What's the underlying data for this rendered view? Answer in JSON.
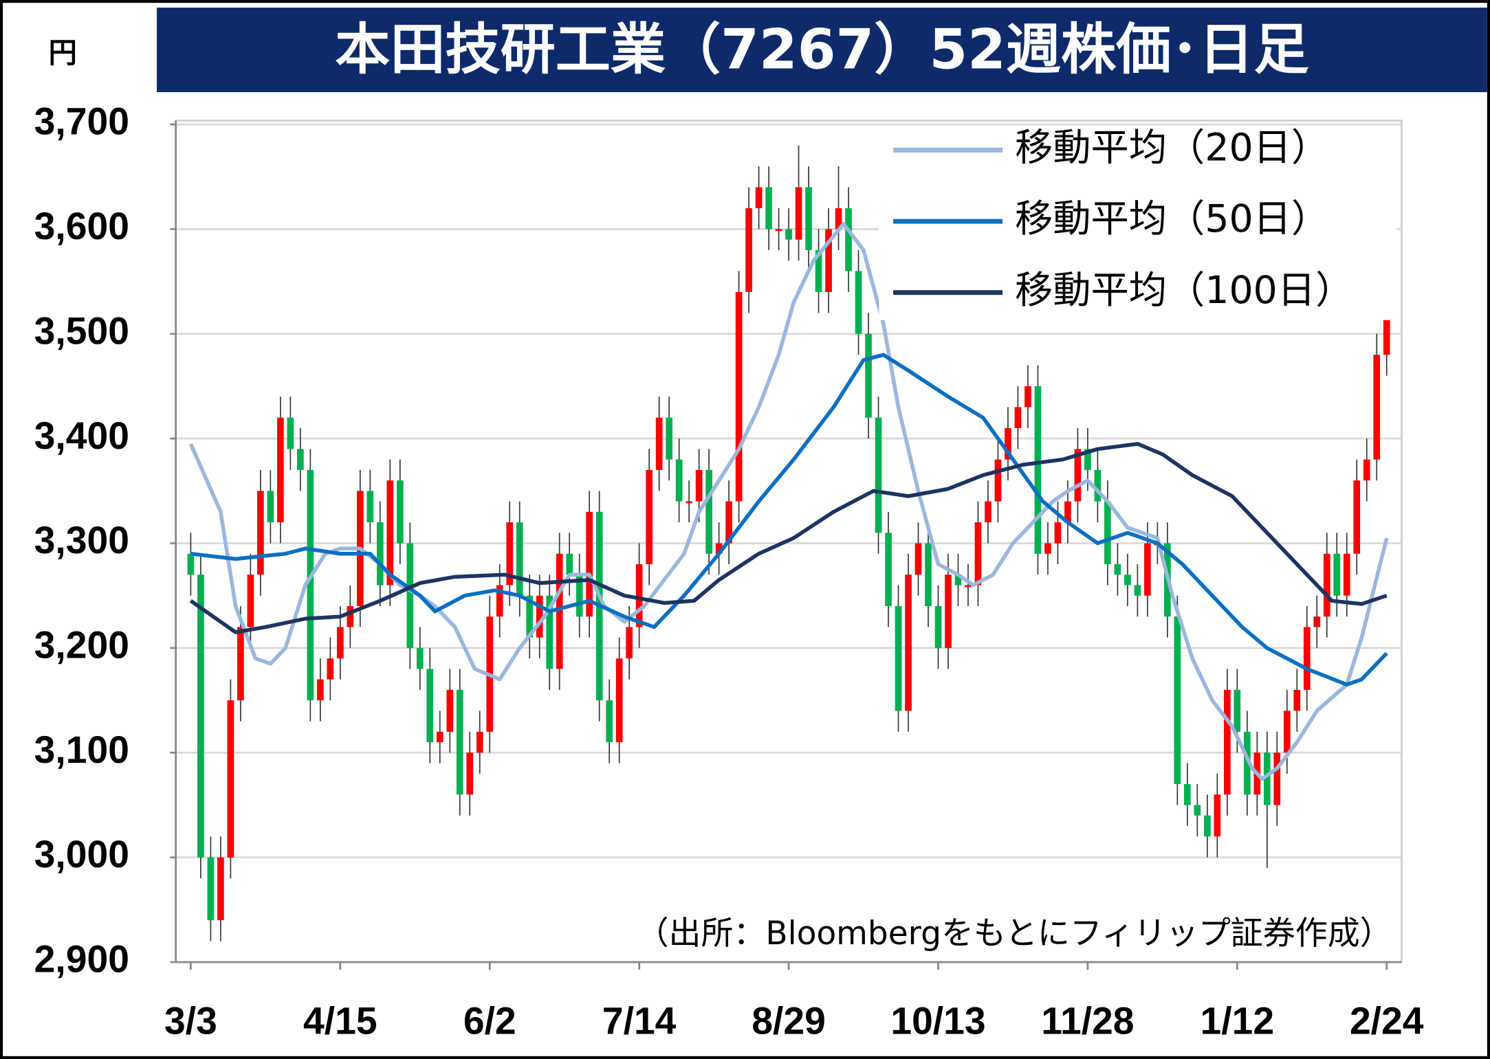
{
  "chart_data": {
    "type": "candlestick",
    "title": "本田技研工業（7267）52週株価･日足",
    "y_unit": "円",
    "source": "（出所：Bloombergをもとにフィリップ証券作成）",
    "up_color": "#ff0000",
    "down_color": "#00b050",
    "grid": true,
    "legend": "top-right",
    "xlim": [
      -3,
      243
    ],
    "xticks": [
      {
        "value": 0,
        "label": "3/3"
      },
      {
        "value": 30,
        "label": "4/15"
      },
      {
        "value": 60,
        "label": "6/2"
      },
      {
        "value": 90,
        "label": "7/14"
      },
      {
        "value": 120,
        "label": "8/29"
      },
      {
        "value": 150,
        "label": "10/13"
      },
      {
        "value": 180,
        "label": "11/28"
      },
      {
        "value": 210,
        "label": "1/12"
      },
      {
        "value": 240,
        "label": "2/24"
      }
    ],
    "ylim": [
      2900,
      3700
    ],
    "yticks": [
      {
        "value": 2900,
        "label": "2,900"
      },
      {
        "value": 3000,
        "label": "3,000"
      },
      {
        "value": 3100,
        "label": "3,100"
      },
      {
        "value": 3200,
        "label": "3,200"
      },
      {
        "value": 3300,
        "label": "3,300"
      },
      {
        "value": 3400,
        "label": "3,400"
      },
      {
        "value": 3500,
        "label": "3,500"
      },
      {
        "value": 3600,
        "label": "3,600"
      },
      {
        "value": 3700,
        "label": "3,700"
      }
    ],
    "x": [
      0,
      2,
      4,
      6,
      8,
      10,
      12,
      14,
      16,
      18,
      20,
      22,
      24,
      26,
      28,
      30,
      32,
      34,
      36,
      38,
      40,
      42,
      44,
      46,
      48,
      50,
      52,
      54,
      56,
      58,
      60,
      62,
      64,
      66,
      68,
      70,
      72,
      74,
      76,
      78,
      80,
      82,
      84,
      86,
      88,
      90,
      92,
      94,
      96,
      98,
      100,
      102,
      104,
      106,
      108,
      110,
      112,
      114,
      116,
      118,
      120,
      122,
      124,
      126,
      128,
      130,
      132,
      134,
      136,
      138,
      140,
      142,
      144,
      146,
      148,
      150,
      152,
      154,
      156,
      158,
      160,
      162,
      164,
      166,
      168,
      170,
      172,
      174,
      176,
      178,
      180,
      182,
      184,
      186,
      188,
      190,
      192,
      194,
      196,
      198,
      200,
      202,
      204,
      206,
      208,
      210,
      212,
      214,
      216,
      218,
      220,
      222,
      224,
      226,
      228,
      230,
      232,
      234,
      236,
      238,
      240
    ],
    "open": [
      3290,
      3270,
      3000,
      2940,
      3000,
      3150,
      3220,
      3270,
      3350,
      3320,
      3420,
      3390,
      3370,
      3150,
      3170,
      3190,
      3220,
      3240,
      3350,
      3320,
      3260,
      3360,
      3300,
      3200,
      3180,
      3110,
      3120,
      3160,
      3060,
      3100,
      3120,
      3230,
      3260,
      3320,
      3250,
      3210,
      3250,
      3180,
      3290,
      3270,
      3230,
      3330,
      3150,
      3110,
      3190,
      3220,
      3280,
      3370,
      3420,
      3380,
      3340,
      3340,
      3370,
      3290,
      3300,
      3340,
      3540,
      3620,
      3640,
      3600,
      3600,
      3590,
      3640,
      3580,
      3540,
      3600,
      3620,
      3560,
      3500,
      3420,
      3310,
      3240,
      3140,
      3270,
      3300,
      3240,
      3200,
      3270,
      3260,
      3260,
      3320,
      3340,
      3380,
      3410,
      3430,
      3450,
      3290,
      3300,
      3320,
      3340,
      3390,
      3370,
      3340,
      3280,
      3270,
      3260,
      3250,
      3300,
      3300,
      3230,
      3070,
      3050,
      3040,
      3020,
      3060,
      3160,
      3120,
      3060,
      3100,
      3050,
      3100,
      3140,
      3160,
      3220,
      3230,
      3290,
      3250,
      3290,
      3360,
      3380,
      3480
    ],
    "high": [
      3310,
      3290,
      3020,
      3020,
      3170,
      3240,
      3290,
      3370,
      3370,
      3440,
      3440,
      3410,
      3390,
      3190,
      3210,
      3240,
      3260,
      3370,
      3370,
      3340,
      3380,
      3380,
      3320,
      3220,
      3200,
      3140,
      3180,
      3180,
      3120,
      3140,
      3250,
      3280,
      3340,
      3340,
      3270,
      3270,
      3270,
      3310,
      3310,
      3290,
      3350,
      3350,
      3170,
      3210,
      3240,
      3300,
      3390,
      3440,
      3440,
      3400,
      3360,
      3390,
      3390,
      3320,
      3360,
      3560,
      3640,
      3660,
      3660,
      3620,
      3620,
      3680,
      3660,
      3600,
      3620,
      3660,
      3640,
      3580,
      3520,
      3440,
      3330,
      3260,
      3290,
      3320,
      3320,
      3260,
      3290,
      3290,
      3280,
      3340,
      3360,
      3400,
      3430,
      3450,
      3470,
      3470,
      3320,
      3340,
      3360,
      3410,
      3410,
      3390,
      3360,
      3300,
      3290,
      3280,
      3320,
      3320,
      3320,
      3250,
      3090,
      3070,
      3060,
      3080,
      3180,
      3180,
      3140,
      3120,
      3120,
      3120,
      3160,
      3180,
      3240,
      3250,
      3310,
      3310,
      3310,
      3380,
      3400,
      3500,
      3550
    ],
    "low": [
      3250,
      2980,
      2920,
      2920,
      2980,
      3130,
      3200,
      3250,
      3300,
      3300,
      3370,
      3350,
      3130,
      3130,
      3150,
      3170,
      3200,
      3220,
      3300,
      3240,
      3240,
      3280,
      3180,
      3160,
      3090,
      3090,
      3100,
      3040,
      3040,
      3080,
      3100,
      3210,
      3240,
      3230,
      3190,
      3190,
      3160,
      3160,
      3250,
      3210,
      3210,
      3130,
      3090,
      3090,
      3170,
      3200,
      3260,
      3350,
      3360,
      3320,
      3320,
      3320,
      3270,
      3270,
      3280,
      3320,
      3520,
      3600,
      3580,
      3580,
      3570,
      3570,
      3560,
      3520,
      3520,
      3580,
      3540,
      3480,
      3400,
      3290,
      3220,
      3120,
      3120,
      3250,
      3220,
      3180,
      3180,
      3240,
      3240,
      3240,
      3300,
      3320,
      3360,
      3390,
      3410,
      3270,
      3270,
      3280,
      3300,
      3320,
      3350,
      3320,
      3260,
      3250,
      3240,
      3230,
      3230,
      3280,
      3210,
      3050,
      3030,
      3020,
      3000,
      3000,
      3040,
      3100,
      3040,
      3040,
      2990,
      3030,
      3080,
      3120,
      3140,
      3200,
      3210,
      3230,
      3230,
      3270,
      3340,
      3360,
      3460
    ],
    "close": [
      3270,
      3000,
      2940,
      3000,
      3150,
      3220,
      3270,
      3350,
      3320,
      3420,
      3390,
      3370,
      3150,
      3170,
      3190,
      3220,
      3240,
      3350,
      3320,
      3260,
      3360,
      3300,
      3200,
      3180,
      3110,
      3120,
      3160,
      3060,
      3100,
      3120,
      3230,
      3260,
      3320,
      3250,
      3210,
      3250,
      3180,
      3290,
      3270,
      3230,
      3330,
      3150,
      3110,
      3190,
      3220,
      3280,
      3370,
      3420,
      3380,
      3340,
      3340,
      3370,
      3290,
      3300,
      3340,
      3540,
      3620,
      3640,
      3600,
      3600,
      3590,
      3640,
      3580,
      3540,
      3600,
      3620,
      3560,
      3500,
      3420,
      3310,
      3240,
      3140,
      3270,
      3300,
      3240,
      3200,
      3270,
      3260,
      3260,
      3320,
      3340,
      3380,
      3410,
      3430,
      3450,
      3290,
      3300,
      3320,
      3340,
      3390,
      3370,
      3340,
      3280,
      3270,
      3260,
      3250,
      3300,
      3300,
      3230,
      3070,
      3050,
      3040,
      3020,
      3060,
      3160,
      3120,
      3060,
      3100,
      3050,
      3100,
      3140,
      3160,
      3220,
      3230,
      3290,
      3250,
      3290,
      3360,
      3380,
      3480,
      3530
    ],
    "series": [
      {
        "name": "移動平均（20日）",
        "color": "#9ab7dc",
        "x": [
          0,
          6,
          9,
          13,
          16,
          19,
          23,
          27,
          30,
          34,
          38,
          42,
          46,
          49,
          53,
          57,
          62,
          66,
          71,
          76,
          80,
          83,
          87,
          91,
          95,
          99,
          102,
          106,
          110,
          114,
          118,
          121,
          125,
          131,
          135,
          139,
          142,
          146,
          150,
          154,
          157,
          161,
          165,
          169,
          173,
          176,
          180,
          184,
          188,
          194,
          197,
          201,
          205,
          209,
          213,
          215,
          218,
          222,
          226,
          232,
          235,
          240
        ],
        "values": [
          3395,
          3330,
          3240,
          3190,
          3185,
          3200,
          3260,
          3290,
          3295,
          3295,
          3280,
          3260,
          3250,
          3240,
          3220,
          3180,
          3170,
          3200,
          3230,
          3270,
          3270,
          3240,
          3225,
          3240,
          3265,
          3290,
          3330,
          3360,
          3390,
          3430,
          3480,
          3530,
          3570,
          3605,
          3580,
          3510,
          3430,
          3350,
          3280,
          3270,
          3260,
          3270,
          3300,
          3320,
          3340,
          3350,
          3360,
          3340,
          3315,
          3305,
          3250,
          3190,
          3150,
          3125,
          3085,
          3075,
          3085,
          3110,
          3140,
          3165,
          3210,
          3305
        ]
      },
      {
        "name": "移動平均（50日）",
        "color": "#0a6fc2",
        "x": [
          0,
          9,
          19,
          23,
          30,
          36,
          40,
          46,
          49,
          55,
          61,
          66,
          72,
          80,
          87,
          93,
          99,
          106,
          114,
          121,
          129,
          135,
          139,
          144,
          152,
          159,
          165,
          171,
          176,
          182,
          188,
          194,
          199,
          205,
          211,
          216,
          224,
          232,
          235,
          240
        ],
        "values": [
          3290,
          3285,
          3290,
          3295,
          3290,
          3290,
          3270,
          3250,
          3235,
          3250,
          3255,
          3250,
          3235,
          3245,
          3230,
          3220,
          3250,
          3290,
          3340,
          3380,
          3430,
          3475,
          3480,
          3465,
          3440,
          3420,
          3380,
          3340,
          3320,
          3300,
          3310,
          3300,
          3280,
          3250,
          3220,
          3200,
          3180,
          3165,
          3170,
          3195
        ]
      },
      {
        "name": "移動平均（100日）",
        "color": "#1c3461",
        "x": [
          0,
          9,
          15,
          23,
          30,
          38,
          46,
          53,
          63,
          70,
          80,
          87,
          95,
          101,
          106,
          114,
          121,
          129,
          137,
          144,
          152,
          159,
          167,
          175,
          182,
          190,
          195,
          201,
          209,
          216,
          224,
          229,
          235,
          240
        ],
        "values": [
          3245,
          3215,
          3220,
          3228,
          3230,
          3245,
          3262,
          3268,
          3270,
          3262,
          3265,
          3250,
          3243,
          3245,
          3265,
          3290,
          3305,
          3330,
          3350,
          3345,
          3352,
          3365,
          3375,
          3380,
          3390,
          3395,
          3385,
          3365,
          3345,
          3310,
          3270,
          3245,
          3242,
          3250
        ]
      }
    ]
  }
}
